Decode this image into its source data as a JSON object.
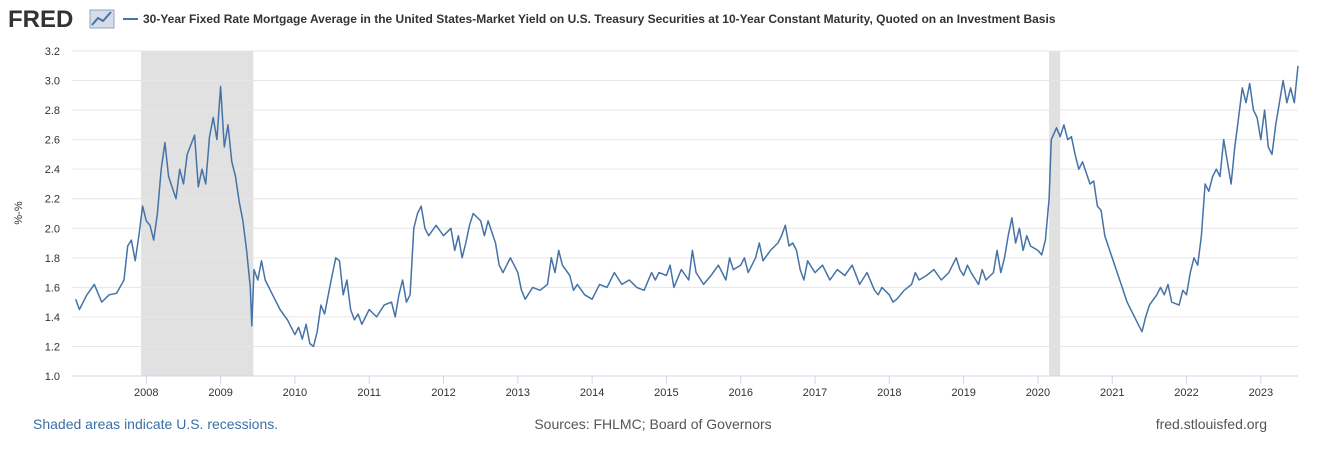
{
  "header": {
    "logo": "FRED"
  },
  "chart_data": {
    "type": "line",
    "y_label": "%-%",
    "x": [
      2007.05,
      2007.1,
      2007.2,
      2007.3,
      2007.4,
      2007.5,
      2007.6,
      2007.7,
      2007.75,
      2007.8,
      2007.85,
      2007.9,
      2007.95,
      2008.0,
      2008.05,
      2008.1,
      2008.15,
      2008.2,
      2008.25,
      2008.3,
      2008.4,
      2008.45,
      2008.5,
      2008.55,
      2008.65,
      2008.7,
      2008.75,
      2008.8,
      2008.85,
      2008.9,
      2008.95,
      2009.0,
      2009.05,
      2009.1,
      2009.15,
      2009.2,
      2009.25,
      2009.3,
      2009.35,
      2009.4,
      2009.42,
      2009.45,
      2009.5,
      2009.55,
      2009.6,
      2009.7,
      2009.8,
      2009.9,
      2010.0,
      2010.05,
      2010.1,
      2010.15,
      2010.2,
      2010.25,
      2010.3,
      2010.35,
      2010.4,
      2010.45,
      2010.5,
      2010.55,
      2010.6,
      2010.65,
      2010.7,
      2010.75,
      2010.8,
      2010.85,
      2010.9,
      2011.0,
      2011.1,
      2011.2,
      2011.3,
      2011.35,
      2011.4,
      2011.45,
      2011.5,
      2011.55,
      2011.6,
      2011.65,
      2011.7,
      2011.75,
      2011.8,
      2011.9,
      2012.0,
      2012.1,
      2012.15,
      2012.2,
      2012.25,
      2012.3,
      2012.35,
      2012.4,
      2012.5,
      2012.55,
      2012.6,
      2012.7,
      2012.75,
      2012.8,
      2012.9,
      2013.0,
      2013.05,
      2013.1,
      2013.2,
      2013.3,
      2013.4,
      2013.45,
      2013.5,
      2013.55,
      2013.6,
      2013.7,
      2013.75,
      2013.8,
      2013.9,
      2014.0,
      2014.1,
      2014.2,
      2014.3,
      2014.4,
      2014.5,
      2014.6,
      2014.7,
      2014.8,
      2014.85,
      2014.9,
      2015.0,
      2015.05,
      2015.1,
      2015.2,
      2015.3,
      2015.35,
      2015.4,
      2015.5,
      2015.6,
      2015.7,
      2015.8,
      2015.85,
      2015.9,
      2016.0,
      2016.05,
      2016.1,
      2016.2,
      2016.25,
      2016.3,
      2016.4,
      2016.5,
      2016.55,
      2016.6,
      2016.65,
      2016.7,
      2016.75,
      2016.8,
      2016.85,
      2016.9,
      2017.0,
      2017.1,
      2017.2,
      2017.3,
      2017.4,
      2017.5,
      2017.6,
      2017.7,
      2017.8,
      2017.85,
      2017.9,
      2018.0,
      2018.05,
      2018.1,
      2018.2,
      2018.3,
      2018.35,
      2018.4,
      2018.5,
      2018.6,
      2018.7,
      2018.8,
      2018.85,
      2018.9,
      2018.95,
      2019.0,
      2019.05,
      2019.1,
      2019.2,
      2019.25,
      2019.3,
      2019.4,
      2019.45,
      2019.5,
      2019.55,
      2019.6,
      2019.65,
      2019.7,
      2019.75,
      2019.8,
      2019.85,
      2019.9,
      2020.0,
      2020.05,
      2020.1,
      2020.15,
      2020.18,
      2020.25,
      2020.3,
      2020.35,
      2020.4,
      2020.45,
      2020.5,
      2020.55,
      2020.6,
      2020.7,
      2020.75,
      2020.8,
      2020.85,
      2020.9,
      2021.0,
      2021.1,
      2021.2,
      2021.3,
      2021.35,
      2021.4,
      2021.45,
      2021.5,
      2021.6,
      2021.65,
      2021.7,
      2021.75,
      2021.8,
      2021.9,
      2021.95,
      2022.0,
      2022.05,
      2022.1,
      2022.15,
      2022.2,
      2022.25,
      2022.3,
      2022.35,
      2022.4,
      2022.45,
      2022.5,
      2022.55,
      2022.6,
      2022.65,
      2022.7,
      2022.75,
      2022.8,
      2022.85,
      2022.9,
      2022.95,
      2023.0,
      2023.05,
      2023.1,
      2023.15,
      2023.2,
      2023.25,
      2023.3,
      2023.35,
      2023.4,
      2023.45,
      2023.5
    ],
    "series": [
      {
        "name": "30-Year Fixed Rate Mortgage Average in the United States-Market Yield on U.S. Treasury Securities at 10-Year Constant Maturity, Quoted on an Investment Basis",
        "color": "#4572a7",
        "values": [
          1.52,
          1.45,
          1.55,
          1.62,
          1.5,
          1.55,
          1.56,
          1.65,
          1.88,
          1.92,
          1.78,
          1.95,
          2.15,
          2.05,
          2.02,
          1.92,
          2.1,
          2.4,
          2.58,
          2.35,
          2.2,
          2.4,
          2.3,
          2.5,
          2.63,
          2.28,
          2.4,
          2.3,
          2.62,
          2.75,
          2.6,
          2.96,
          2.55,
          2.7,
          2.45,
          2.35,
          2.18,
          2.05,
          1.85,
          1.6,
          1.34,
          1.72,
          1.65,
          1.78,
          1.65,
          1.55,
          1.45,
          1.38,
          1.28,
          1.33,
          1.25,
          1.35,
          1.22,
          1.2,
          1.3,
          1.48,
          1.42,
          1.55,
          1.68,
          1.8,
          1.78,
          1.55,
          1.65,
          1.45,
          1.38,
          1.42,
          1.35,
          1.45,
          1.4,
          1.48,
          1.5,
          1.4,
          1.55,
          1.65,
          1.5,
          1.55,
          2.0,
          2.1,
          2.15,
          2.0,
          1.95,
          2.02,
          1.95,
          2.0,
          1.85,
          1.95,
          1.8,
          1.9,
          2.02,
          2.1,
          2.05,
          1.95,
          2.05,
          1.9,
          1.75,
          1.7,
          1.8,
          1.7,
          1.58,
          1.52,
          1.6,
          1.58,
          1.62,
          1.8,
          1.7,
          1.85,
          1.75,
          1.68,
          1.58,
          1.62,
          1.55,
          1.52,
          1.62,
          1.6,
          1.7,
          1.62,
          1.65,
          1.6,
          1.58,
          1.7,
          1.65,
          1.7,
          1.68,
          1.75,
          1.6,
          1.72,
          1.65,
          1.85,
          1.7,
          1.62,
          1.68,
          1.75,
          1.65,
          1.8,
          1.72,
          1.75,
          1.8,
          1.7,
          1.8,
          1.9,
          1.78,
          1.85,
          1.9,
          1.95,
          2.02,
          1.88,
          1.9,
          1.85,
          1.72,
          1.65,
          1.78,
          1.7,
          1.75,
          1.65,
          1.72,
          1.68,
          1.75,
          1.62,
          1.7,
          1.58,
          1.55,
          1.6,
          1.55,
          1.5,
          1.52,
          1.58,
          1.62,
          1.7,
          1.65,
          1.68,
          1.72,
          1.65,
          1.7,
          1.75,
          1.8,
          1.72,
          1.68,
          1.75,
          1.7,
          1.62,
          1.72,
          1.65,
          1.7,
          1.85,
          1.7,
          1.8,
          1.95,
          2.07,
          1.9,
          2.0,
          1.85,
          1.95,
          1.88,
          1.85,
          1.82,
          1.92,
          2.2,
          2.6,
          2.68,
          2.62,
          2.7,
          2.6,
          2.62,
          2.5,
          2.4,
          2.45,
          2.3,
          2.32,
          2.15,
          2.12,
          1.95,
          1.8,
          1.65,
          1.5,
          1.4,
          1.35,
          1.3,
          1.4,
          1.48,
          1.55,
          1.6,
          1.55,
          1.62,
          1.5,
          1.48,
          1.58,
          1.55,
          1.7,
          1.8,
          1.75,
          1.95,
          2.3,
          2.25,
          2.35,
          2.4,
          2.35,
          2.6,
          2.45,
          2.3,
          2.55,
          2.75,
          2.95,
          2.85,
          2.98,
          2.8,
          2.75,
          2.6,
          2.8,
          2.55,
          2.5,
          2.7,
          2.85,
          3.0,
          2.85,
          2.95,
          2.85,
          3.1
        ]
      }
    ],
    "recessions": [
      [
        2007.93,
        2009.44
      ],
      [
        2020.15,
        2020.3
      ]
    ],
    "xlim": [
      2007.0,
      2023.5
    ],
    "xticks": [
      2008,
      2009,
      2010,
      2011,
      2012,
      2013,
      2014,
      2015,
      2016,
      2017,
      2018,
      2019,
      2020,
      2021,
      2022,
      2023
    ],
    "ylim": [
      1.0,
      3.2
    ],
    "yticks": [
      {
        "value": 1,
        "label": "1.0"
      },
      1.2,
      1.4,
      1.6,
      1.8,
      {
        "value": 2,
        "label": "2.0"
      },
      2.2,
      2.4,
      2.6,
      2.8,
      {
        "value": 3,
        "label": "3.0"
      },
      3.2
    ],
    "grid": true
  },
  "footer": {
    "recession_note": "Shaded areas indicate U.S. recessions.",
    "sources": "Sources: FHLMC; Board of Governors",
    "site": "fred.stlouisfed.org"
  }
}
